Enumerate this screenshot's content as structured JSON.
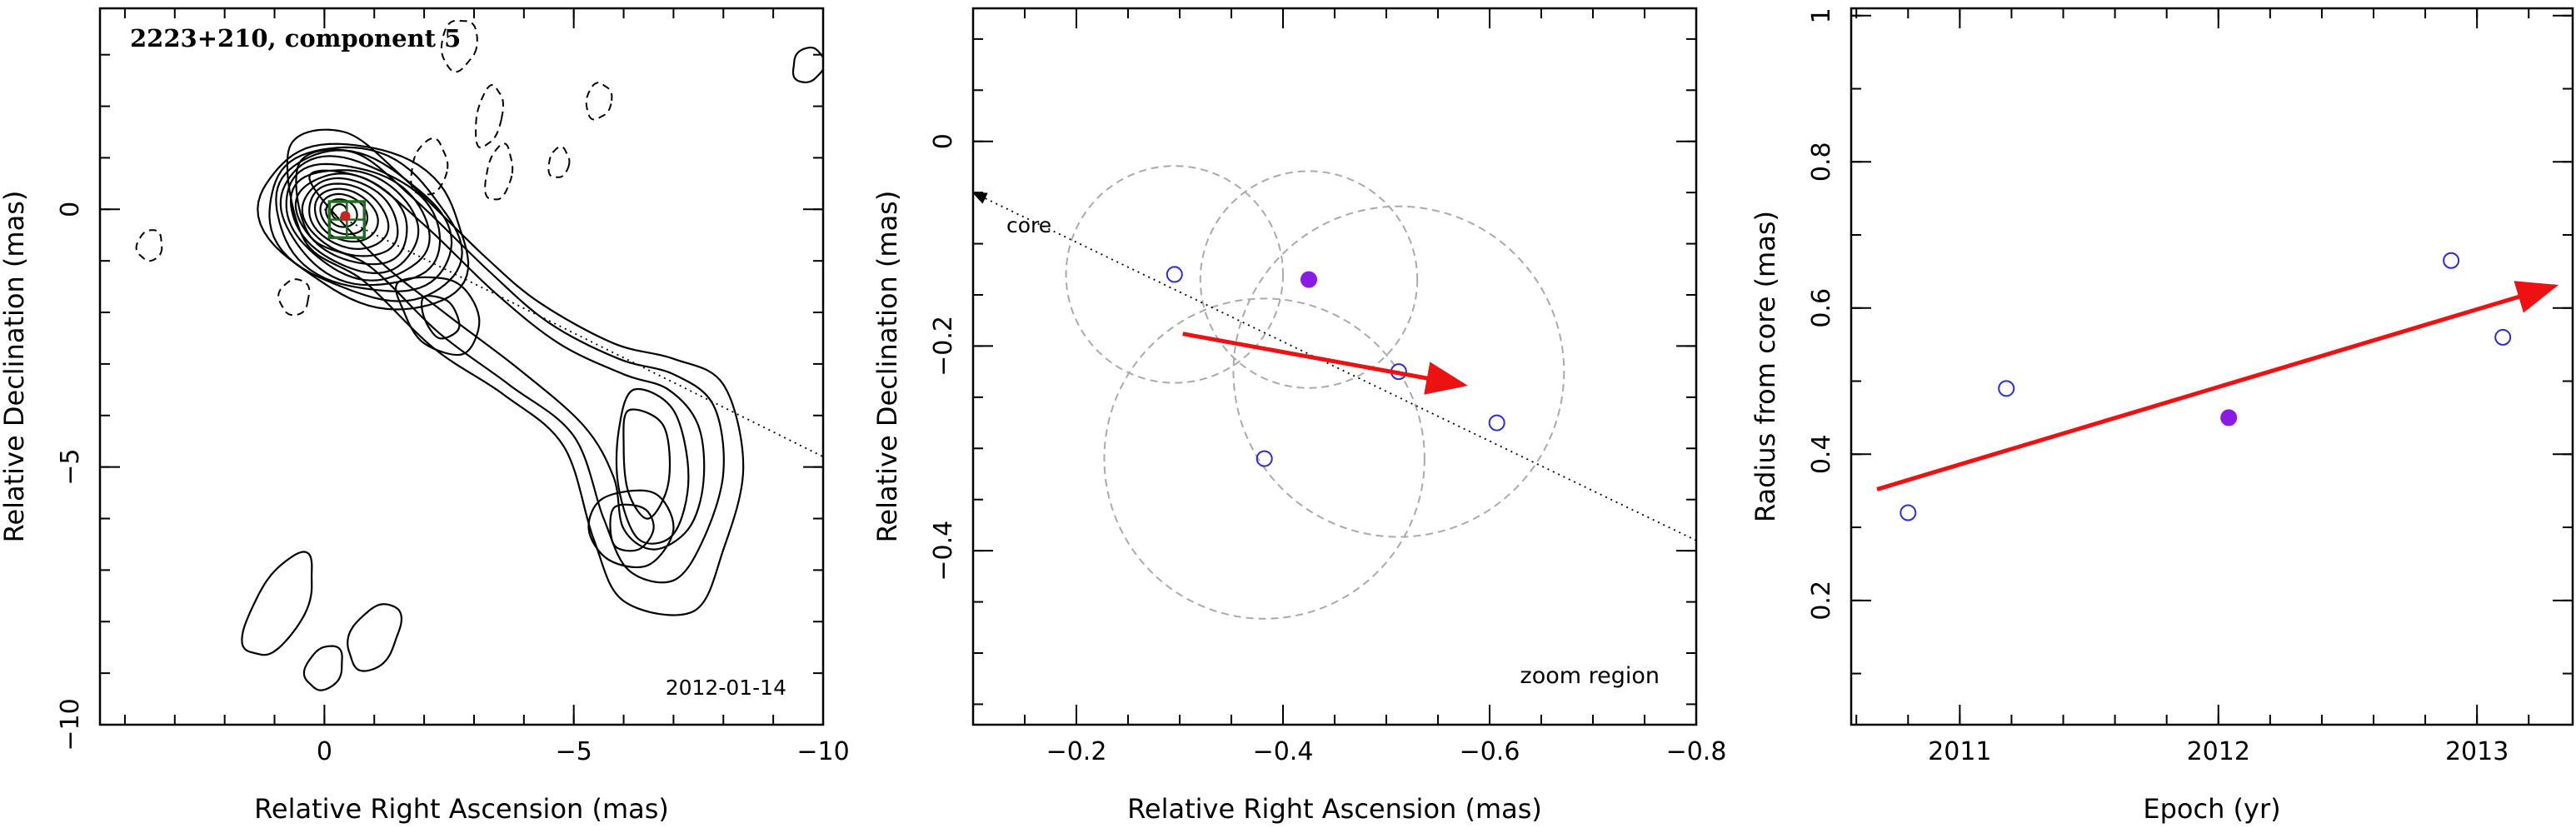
{
  "chart_data": [
    {
      "type": "contour",
      "title": "2223+210, component 5",
      "xlabel": "Relative Right Ascension (mas)",
      "ylabel": "Relative Declination (mas)",
      "xlim": [
        4.5,
        -10
      ],
      "ylim": [
        -10,
        3.9
      ],
      "x_ticks": [
        0,
        -5,
        -10
      ],
      "y_ticks": [
        0,
        -5,
        -10
      ],
      "date_label": "2012-01-14",
      "marker": {
        "x": -0.42,
        "y": -0.13,
        "color": "#cc2222"
      },
      "zoom_box": {
        "x": [
          -0.1,
          -0.8
        ],
        "y": [
          -0.55,
          0.15
        ],
        "color": "#1f6e1f"
      },
      "trend_line": {
        "x": [
          0,
          -10
        ],
        "y": [
          0,
          -4.8
        ]
      }
    },
    {
      "type": "scatter",
      "xlabel": "Relative Right Ascension (mas)",
      "ylabel": "Relative Declination (mas)",
      "xlim": [
        -0.1,
        -0.8
      ],
      "ylim": [
        -0.57,
        0.13
      ],
      "x_ticks": [
        -0.2,
        -0.4,
        -0.6,
        -0.8
      ],
      "y_ticks": [
        0,
        -0.2,
        -0.4
      ],
      "core_label": "core",
      "region_label": "zoom region",
      "trend_line": {
        "x": [
          -0.1,
          -0.8
        ],
        "y": [
          -0.05,
          -0.39
        ]
      },
      "points_open": [
        {
          "x": -0.295,
          "y": -0.13,
          "r": 0.105
        },
        {
          "x": -0.382,
          "y": -0.31,
          "r": 0.155
        },
        {
          "x": -0.512,
          "y": -0.225,
          "r": 0.16
        },
        {
          "x": -0.607,
          "y": -0.275
        }
      ],
      "points_filled": [
        {
          "x": -0.425,
          "y": -0.135,
          "r": 0.105
        }
      ],
      "arrow": {
        "x0": -0.303,
        "y0": -0.188,
        "x1": -0.575,
        "y1": -0.238,
        "color": "#ee1111"
      },
      "point_color": "#2b2bdb",
      "filled_color": "#8a1ae6"
    },
    {
      "type": "scatter",
      "xlabel": "Epoch (yr)",
      "ylabel": "Radius from core (mas)",
      "xlim": [
        2010.58,
        2013.37
      ],
      "ylim": [
        0.03,
        1.01
      ],
      "x_ticks": [
        2011,
        2012,
        2013
      ],
      "y_ticks": [
        0.2,
        0.4,
        0.6,
        0.8,
        1
      ],
      "points_open": [
        {
          "x": 2010.8,
          "y": 0.32
        },
        {
          "x": 2011.18,
          "y": 0.49
        },
        {
          "x": 2012.9,
          "y": 0.665
        },
        {
          "x": 2013.1,
          "y": 0.56
        }
      ],
      "points_filled": [
        {
          "x": 2012.04,
          "y": 0.45
        }
      ],
      "arrow": {
        "x0": 2010.68,
        "y0": 0.352,
        "x1": 2013.3,
        "y1": 0.63,
        "color": "#ee1111"
      },
      "point_color": "#2b2bdb",
      "filled_color": "#8a1ae6"
    }
  ]
}
